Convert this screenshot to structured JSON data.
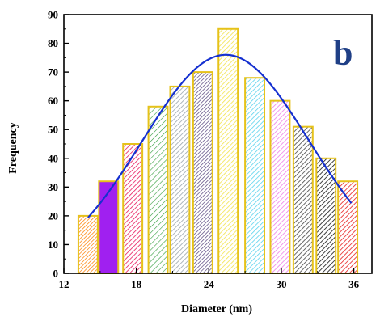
{
  "chart_data": {
    "type": "bar",
    "title": "",
    "panel_label": "b",
    "panel_label_color": "#1f3f86",
    "xlabel": "Diameter (nm)",
    "ylabel": "Frequency",
    "xlim": [
      12,
      37.5
    ],
    "ylim": [
      0,
      90
    ],
    "x_ticks": [
      12,
      18,
      24,
      30,
      36
    ],
    "y_ticks": [
      0,
      10,
      20,
      30,
      40,
      50,
      60,
      70,
      80,
      90
    ],
    "bin_width": 1.6,
    "grid": false,
    "bars": [
      {
        "x": 14.0,
        "value": 20,
        "color": "#ff8c1a",
        "hatch": "diag-dense"
      },
      {
        "x": 15.7,
        "value": 32,
        "color": "#a020f0",
        "hatch": "solid"
      },
      {
        "x": 17.7,
        "value": 45,
        "color": "#e8185c",
        "hatch": "diag"
      },
      {
        "x": 19.8,
        "value": 58,
        "color": "#2e9c3a",
        "hatch": "diag-light"
      },
      {
        "x": 21.6,
        "value": 65,
        "color": "#9aa5ad",
        "hatch": "diag"
      },
      {
        "x": 23.5,
        "value": 70,
        "color": "#6a5a8c",
        "hatch": "diag-dense"
      },
      {
        "x": 25.6,
        "value": 85,
        "color": "#f3e34a",
        "hatch": "diag"
      },
      {
        "x": 27.8,
        "value": 68,
        "color": "#58d2ee",
        "hatch": "diag"
      },
      {
        "x": 29.9,
        "value": 60,
        "color": "#f07fe8",
        "hatch": "diag"
      },
      {
        "x": 31.8,
        "value": 51,
        "color": "#444444",
        "hatch": "diag"
      },
      {
        "x": 33.7,
        "value": 40,
        "color": "#111111",
        "hatch": "diag"
      },
      {
        "x": 35.5,
        "value": 32,
        "color": "#e81c1c",
        "hatch": "diag"
      }
    ],
    "fit_curve": {
      "type": "gaussian",
      "color": "#1530d0",
      "amplitude": 76,
      "center": 25.4,
      "sigma": 6.9,
      "x_range": [
        14.0,
        35.8
      ]
    }
  }
}
